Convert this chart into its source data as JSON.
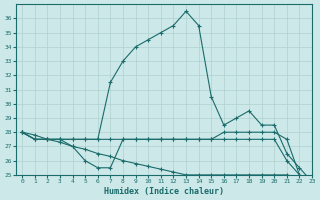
{
  "title": "",
  "xlabel": "Humidex (Indice chaleur)",
  "ylabel": "",
  "bg_color": "#cde8e8",
  "grid_color": "#b0d0d0",
  "line_color": "#1a6b6b",
  "ylim": [
    25,
    37
  ],
  "xlim": [
    -0.5,
    23
  ],
  "yticks": [
    25,
    26,
    27,
    28,
    29,
    30,
    31,
    32,
    33,
    34,
    35,
    36
  ],
  "xticks": [
    0,
    1,
    2,
    3,
    4,
    5,
    6,
    7,
    8,
    9,
    10,
    11,
    12,
    13,
    14,
    15,
    16,
    17,
    18,
    19,
    20,
    21,
    22,
    23
  ],
  "lines": [
    {
      "x": [
        0,
        1,
        2,
        3,
        4,
        5,
        6,
        7,
        8,
        9,
        10,
        11,
        12,
        13,
        14,
        15,
        16,
        17,
        18,
        19,
        20,
        21,
        22,
        23
      ],
      "y": [
        28,
        27.5,
        27.5,
        27.5,
        27.5,
        27.5,
        27.5,
        31.5,
        33,
        34,
        34.5,
        35,
        35.5,
        36.5,
        35.5,
        30.5,
        28.5,
        29,
        29.5,
        28.5,
        28.5,
        26.5,
        25.5,
        24.5
      ]
    },
    {
      "x": [
        0,
        1,
        2,
        3,
        4,
        5,
        6,
        7,
        8,
        9,
        10,
        11,
        12,
        13,
        14,
        15,
        16,
        17,
        18,
        19,
        20,
        21,
        22,
        23
      ],
      "y": [
        28,
        27.5,
        27.5,
        27.5,
        27,
        26,
        25.5,
        25.5,
        27.5,
        27.5,
        27.5,
        27.5,
        27.5,
        27.5,
        27.5,
        27.5,
        28,
        28,
        28,
        28,
        28,
        27.5,
        25,
        24.5
      ]
    },
    {
      "x": [
        0,
        1,
        2,
        3,
        4,
        5,
        6,
        7,
        8,
        9,
        10,
        11,
        12,
        13,
        14,
        15,
        16,
        17,
        18,
        19,
        20,
        21,
        22,
        23
      ],
      "y": [
        28,
        27.5,
        27.5,
        27.5,
        27.5,
        27.5,
        27.5,
        27.5,
        27.5,
        27.5,
        27.5,
        27.5,
        27.5,
        27.5,
        27.5,
        27.5,
        27.5,
        27.5,
        27.5,
        27.5,
        27.5,
        26,
        25,
        24.5
      ]
    },
    {
      "x": [
        0,
        1,
        2,
        3,
        4,
        5,
        6,
        7,
        8,
        9,
        10,
        11,
        12,
        13,
        14,
        15,
        16,
        17,
        18,
        19,
        20,
        21,
        22,
        23
      ],
      "y": [
        28,
        27.8,
        27.5,
        27.3,
        27.0,
        26.8,
        26.5,
        26.3,
        26.0,
        25.8,
        25.6,
        25.4,
        25.2,
        25.0,
        25.0,
        25.0,
        25.0,
        25.0,
        25.0,
        25.0,
        25.0,
        25.0,
        24.8,
        24.5
      ]
    }
  ]
}
